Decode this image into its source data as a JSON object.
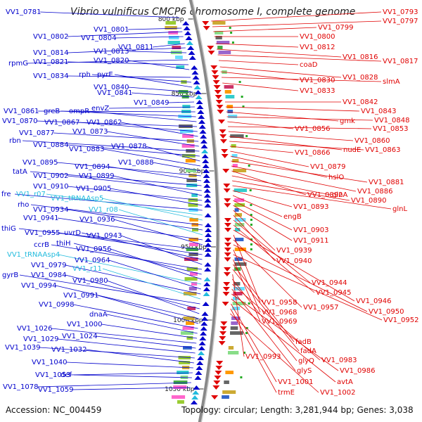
{
  "title": "Vibrio vulnificus CMCP6 chromosome I, complete genome",
  "footer": {
    "accession": "Accession: NC_004459",
    "topology": "Topology: circular; Length: 3,281,944 bp; Genes: 3,038"
  },
  "colors": {
    "reverse_strand": "#0000cc",
    "forward_strand": "#e00000",
    "rna": "#22bbdd",
    "backbone": "#888888",
    "ticks": "#333333"
  },
  "kbp_ticks": [
    {
      "label": "800 kbp"
    },
    {
      "label": "850 kbp"
    },
    {
      "label": "900 kbp"
    },
    {
      "label": "950 kbp"
    },
    {
      "label": "1000 kbp"
    },
    {
      "label": "1050 kbp"
    }
  ],
  "left_labels": [
    {
      "text": "VV1_0781",
      "kind": "gene"
    },
    {
      "text": "VV1_0801",
      "kind": "gene"
    },
    {
      "text": "VV1_0802",
      "kind": "gene"
    },
    {
      "text": "VV1_0804",
      "kind": "gene"
    },
    {
      "text": "VV1_0811",
      "kind": "gene"
    },
    {
      "text": "VV1_0814",
      "kind": "gene"
    },
    {
      "text": "VV1_0813",
      "kind": "gene"
    },
    {
      "text": "rpmG",
      "kind": "gene"
    },
    {
      "text": "VV1_0821",
      "kind": "gene"
    },
    {
      "text": "VV1_0820",
      "kind": "gene"
    },
    {
      "text": "VV1_0834",
      "kind": "gene"
    },
    {
      "text": "rph",
      "kind": "gene"
    },
    {
      "text": "pyrE",
      "kind": "gene"
    },
    {
      "text": "VV1_0840",
      "kind": "gene"
    },
    {
      "text": "VV1_0841",
      "kind": "gene"
    },
    {
      "text": "VV1_0849",
      "kind": "gene"
    },
    {
      "text": "envZ",
      "kind": "gene"
    },
    {
      "text": "VV1_0861",
      "kind": "gene"
    },
    {
      "text": "greB",
      "kind": "gene"
    },
    {
      "text": "ompR",
      "kind": "gene"
    },
    {
      "text": "VV1_0870",
      "kind": "gene"
    },
    {
      "text": "VV1_0867",
      "kind": "gene"
    },
    {
      "text": "VV1_0862",
      "kind": "gene"
    },
    {
      "text": "VV1_0877",
      "kind": "gene"
    },
    {
      "text": "VV1_0873",
      "kind": "gene"
    },
    {
      "text": "rbn",
      "kind": "gene"
    },
    {
      "text": "VV1_0884",
      "kind": "gene"
    },
    {
      "text": "VV1_0878",
      "kind": "gene"
    },
    {
      "text": "VV1_0883",
      "kind": "gene"
    },
    {
      "text": "VV1_0888",
      "kind": "gene"
    },
    {
      "text": "VV1_0895",
      "kind": "gene"
    },
    {
      "text": "VV1_0894",
      "kind": "gene"
    },
    {
      "text": "tatA",
      "kind": "gene"
    },
    {
      "text": "VV1_0902",
      "kind": "gene"
    },
    {
      "text": "VV1_0899",
      "kind": "gene"
    },
    {
      "text": "VV1_0910",
      "kind": "gene"
    },
    {
      "text": "VV1_0905",
      "kind": "gene"
    },
    {
      "text": "fre",
      "kind": "gene"
    },
    {
      "text": "VV1_r07",
      "kind": "rna"
    },
    {
      "text": "VV1_tRNAAsp5",
      "kind": "rna"
    },
    {
      "text": "rho",
      "kind": "gene"
    },
    {
      "text": "VV1_0934",
      "kind": "gene"
    },
    {
      "text": "VV1_r08",
      "kind": "rna"
    },
    {
      "text": "VV1_0941",
      "kind": "gene"
    },
    {
      "text": "VV1_0936",
      "kind": "gene"
    },
    {
      "text": "thiG",
      "kind": "gene"
    },
    {
      "text": "VV1_0955",
      "kind": "gene"
    },
    {
      "text": "uvrD",
      "kind": "gene"
    },
    {
      "text": "VV1_0943",
      "kind": "gene"
    },
    {
      "text": "ccrB",
      "kind": "gene"
    },
    {
      "text": "thiH",
      "kind": "gene"
    },
    {
      "text": "VV1_0956",
      "kind": "gene"
    },
    {
      "text": "VV1_tRNAAsp4",
      "kind": "rna"
    },
    {
      "text": "VV1_0964",
      "kind": "gene"
    },
    {
      "text": "VV1_0979",
      "kind": "gene"
    },
    {
      "text": "VV1_r11",
      "kind": "rna"
    },
    {
      "text": "gyrB",
      "kind": "gene"
    },
    {
      "text": "VV1_0984",
      "kind": "gene"
    },
    {
      "text": "VV1_0980",
      "kind": "gene"
    },
    {
      "text": "VV1_0994",
      "kind": "gene"
    },
    {
      "text": "VV1_0991",
      "kind": "gene"
    },
    {
      "text": "VV1_0998",
      "kind": "gene"
    },
    {
      "text": "dnaA",
      "kind": "gene"
    },
    {
      "text": "VV1_1000",
      "kind": "gene"
    },
    {
      "text": "VV1_1026",
      "kind": "gene"
    },
    {
      "text": "VV1_1024",
      "kind": "gene"
    },
    {
      "text": "VV1_1029",
      "kind": "gene"
    },
    {
      "text": "VV1_1039",
      "kind": "gene"
    },
    {
      "text": "VV1_1032",
      "kind": "gene"
    },
    {
      "text": "VV1_1040",
      "kind": "gene"
    },
    {
      "text": "VV1_1053",
      "kind": "gene"
    },
    {
      "text": "def",
      "kind": "gene"
    },
    {
      "text": "VV1_1078",
      "kind": "gene"
    },
    {
      "text": "VV1_1059",
      "kind": "gene"
    }
  ],
  "right_labels": [
    {
      "text": "VV1_0793"
    },
    {
      "text": "VV1_0797"
    },
    {
      "text": "VV1_0799"
    },
    {
      "text": "VV1_0800"
    },
    {
      "text": "VV1_0812"
    },
    {
      "text": "VV1_0816"
    },
    {
      "text": "VV1_0817"
    },
    {
      "text": "coaD"
    },
    {
      "text": "VV1_0828"
    },
    {
      "text": "VV1_0830"
    },
    {
      "text": "slmA"
    },
    {
      "text": "VV1_0833"
    },
    {
      "text": "VV1_0842"
    },
    {
      "text": "VV1_0843"
    },
    {
      "text": "gmk"
    },
    {
      "text": "VV1_0848"
    },
    {
      "text": "VV1_0856"
    },
    {
      "text": "VV1_0853"
    },
    {
      "text": "VV1_0860"
    },
    {
      "text": "nudE"
    },
    {
      "text": "VV1_0863"
    },
    {
      "text": "VV1_0866"
    },
    {
      "text": "VV1_0879"
    },
    {
      "text": "hslO"
    },
    {
      "text": "VV1_0881"
    },
    {
      "text": "VV1_0886"
    },
    {
      "text": "VV1_0892"
    },
    {
      "text": "glnA"
    },
    {
      "text": "VV1_0890"
    },
    {
      "text": "glnL"
    },
    {
      "text": "VV1_0893"
    },
    {
      "text": "engB"
    },
    {
      "text": "VV1_0903"
    },
    {
      "text": "VV1_0911"
    },
    {
      "text": "VV1_0939"
    },
    {
      "text": "VV1_0940"
    },
    {
      "text": "VV1_0944"
    },
    {
      "text": "VV1_0945"
    },
    {
      "text": "VV1_0946"
    },
    {
      "text": "VV1_0958"
    },
    {
      "text": "VV1_0957"
    },
    {
      "text": "VV1_0950"
    },
    {
      "text": "VV1_0968"
    },
    {
      "text": "VV1_0952"
    },
    {
      "text": "VV1_0969"
    },
    {
      "text": "fadB"
    },
    {
      "text": "fadA"
    },
    {
      "text": "VV1_0993"
    },
    {
      "text": "glyQ"
    },
    {
      "text": "VV1_0983"
    },
    {
      "text": "glyS"
    },
    {
      "text": "VV1_0986"
    },
    {
      "text": "avtA"
    },
    {
      "text": "VV1_1001"
    },
    {
      "text": "trmE"
    },
    {
      "text": "VV1_1002"
    }
  ]
}
